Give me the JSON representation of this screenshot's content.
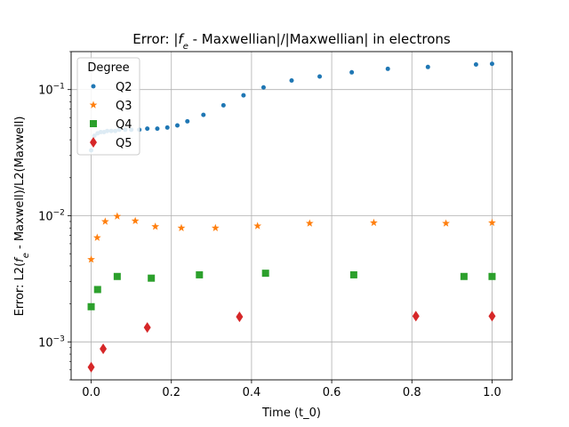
{
  "chart_data": {
    "type": "scatter",
    "title": "Error: |f_e - Maxwellian|/|Maxwellian| in electrons",
    "xlabel": "Time (t_0)",
    "ylabel": "Error: L2(f_e - Maxwell)/L2(Maxwell)",
    "xlim": [
      -0.05,
      1.05
    ],
    "ylim": [
      0.0005,
      0.2
    ],
    "yscale": "log",
    "grid": true,
    "legend": {
      "title": "Degree",
      "placement": "top-left"
    },
    "x_ticks": [
      "0.0",
      "0.2",
      "0.4",
      "0.6",
      "0.8",
      "1.0"
    ],
    "x_tick_values": [
      0,
      0.2,
      0.4,
      0.6,
      0.8,
      1.0
    ],
    "y_ticks": [
      {
        "value": 0.001,
        "base": "10",
        "exp": "−3"
      },
      {
        "value": 0.01,
        "base": "10",
        "exp": "−2"
      },
      {
        "value": 0.1,
        "base": "10",
        "exp": "−1"
      }
    ],
    "series": [
      {
        "name": "Q2",
        "marker": "circle",
        "color": "#1f77b4",
        "x": [
          0.0,
          0.008,
          0.016,
          0.024,
          0.032,
          0.04,
          0.05,
          0.06,
          0.07,
          0.085,
          0.1,
          0.12,
          0.14,
          0.165,
          0.19,
          0.215,
          0.24,
          0.28,
          0.33,
          0.38,
          0.43,
          0.5,
          0.57,
          0.65,
          0.74,
          0.84,
          0.96,
          1.0
        ],
        "y": [
          0.033,
          0.043,
          0.045,
          0.046,
          0.046,
          0.047,
          0.047,
          0.047,
          0.048,
          0.048,
          0.048,
          0.048,
          0.049,
          0.049,
          0.05,
          0.052,
          0.056,
          0.063,
          0.075,
          0.09,
          0.104,
          0.118,
          0.127,
          0.137,
          0.146,
          0.151,
          0.158,
          0.16
        ]
      },
      {
        "name": "Q3",
        "marker": "star",
        "color": "#ff7f0e",
        "x": [
          0.0,
          0.015,
          0.035,
          0.065,
          0.11,
          0.16,
          0.225,
          0.31,
          0.415,
          0.545,
          0.705,
          0.885,
          1.0
        ],
        "y": [
          0.0045,
          0.0067,
          0.009,
          0.0099,
          0.0091,
          0.0082,
          0.008,
          0.008,
          0.0083,
          0.0087,
          0.0088,
          0.0087,
          0.0088
        ]
      },
      {
        "name": "Q4",
        "marker": "square",
        "color": "#2ca02c",
        "x": [
          0.0,
          0.016,
          0.065,
          0.15,
          0.27,
          0.435,
          0.655,
          0.93,
          1.0
        ],
        "y": [
          0.0019,
          0.0026,
          0.0033,
          0.0032,
          0.0034,
          0.0035,
          0.0034,
          0.0033,
          0.0033
        ]
      },
      {
        "name": "Q5",
        "marker": "diamond",
        "color": "#d62728",
        "x": [
          0.0,
          0.03,
          0.14,
          0.37,
          0.81,
          1.0
        ],
        "y": [
          0.00063,
          0.00088,
          0.0013,
          0.00158,
          0.0016,
          0.0016
        ]
      }
    ]
  }
}
